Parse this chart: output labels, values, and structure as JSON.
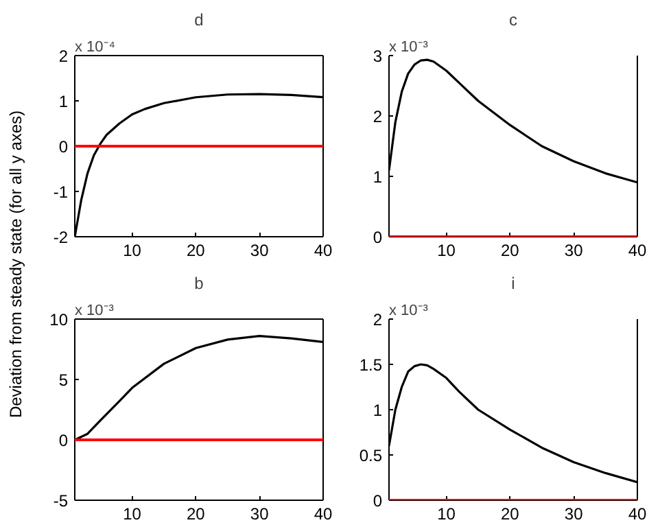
{
  "chart_data": [
    {
      "type": "line",
      "title": "d",
      "ylabel": "Deviation from steady state (for all y axes)",
      "annotations": [
        "x 10⁻⁴"
      ],
      "xlim": [
        1,
        40
      ],
      "xticks": [
        10,
        20,
        30,
        40
      ],
      "ylim": [
        -2,
        2
      ],
      "yticks": [
        -2,
        -1,
        0,
        1,
        2
      ],
      "grid": false,
      "ref_lines": [
        {
          "axis": "y",
          "value": 0,
          "color": "#ff0000"
        }
      ],
      "series": [
        {
          "color": "#000000",
          "x": [
            1,
            2,
            3,
            4,
            5,
            6,
            8,
            10,
            12,
            15,
            20,
            25,
            30,
            35,
            40
          ],
          "values": [
            -2,
            -1.2,
            -0.6,
            -0.2,
            0.05,
            0.25,
            0.5,
            0.7,
            0.82,
            0.95,
            1.08,
            1.14,
            1.15,
            1.13,
            1.08
          ]
        }
      ]
    },
    {
      "type": "line",
      "title": "c",
      "annotations": [
        "x 10⁻³"
      ],
      "xlim": [
        1,
        40
      ],
      "xticks": [
        10,
        20,
        30,
        40
      ],
      "ylim": [
        0,
        3
      ],
      "yticks": [
        0,
        1,
        2,
        3
      ],
      "grid": false,
      "ref_lines": [
        {
          "axis": "y",
          "value": 0,
          "color": "#ff0000"
        }
      ],
      "series": [
        {
          "color": "#000000",
          "x": [
            1,
            2,
            3,
            4,
            5,
            6,
            7,
            8,
            10,
            12,
            15,
            20,
            25,
            30,
            35,
            40
          ],
          "values": [
            1.1,
            1.9,
            2.4,
            2.7,
            2.85,
            2.92,
            2.93,
            2.9,
            2.75,
            2.55,
            2.25,
            1.85,
            1.5,
            1.25,
            1.05,
            0.9
          ]
        }
      ]
    },
    {
      "type": "line",
      "title": "b",
      "annotations": [
        "x 10⁻³"
      ],
      "xlim": [
        1,
        40
      ],
      "xticks": [
        10,
        20,
        30,
        40
      ],
      "ylim": [
        -5,
        10
      ],
      "yticks": [
        -5,
        0,
        5,
        10
      ],
      "grid": false,
      "ref_lines": [
        {
          "axis": "y",
          "value": 0,
          "color": "#ff0000"
        }
      ],
      "series": [
        {
          "color": "#000000",
          "x": [
            1,
            3,
            5,
            8,
            10,
            15,
            20,
            25,
            30,
            35,
            40
          ],
          "values": [
            0,
            0.5,
            1.6,
            3.2,
            4.3,
            6.3,
            7.6,
            8.3,
            8.6,
            8.4,
            8.1
          ]
        }
      ]
    },
    {
      "type": "line",
      "title": "i",
      "annotations": [
        "x 10⁻³"
      ],
      "xlim": [
        1,
        40
      ],
      "xticks": [
        10,
        20,
        30,
        40
      ],
      "ylim": [
        0,
        2
      ],
      "yticks": [
        0,
        0.5,
        1,
        1.5,
        2
      ],
      "grid": false,
      "ref_lines": [
        {
          "axis": "y",
          "value": 0,
          "color": "#ff0000"
        }
      ],
      "series": [
        {
          "color": "#000000",
          "x": [
            1,
            2,
            3,
            4,
            5,
            6,
            7,
            8,
            10,
            12,
            15,
            20,
            25,
            30,
            35,
            40
          ],
          "values": [
            0.6,
            1.0,
            1.25,
            1.42,
            1.48,
            1.5,
            1.49,
            1.45,
            1.35,
            1.2,
            1.0,
            0.78,
            0.58,
            0.42,
            0.3,
            0.2
          ]
        }
      ]
    }
  ]
}
